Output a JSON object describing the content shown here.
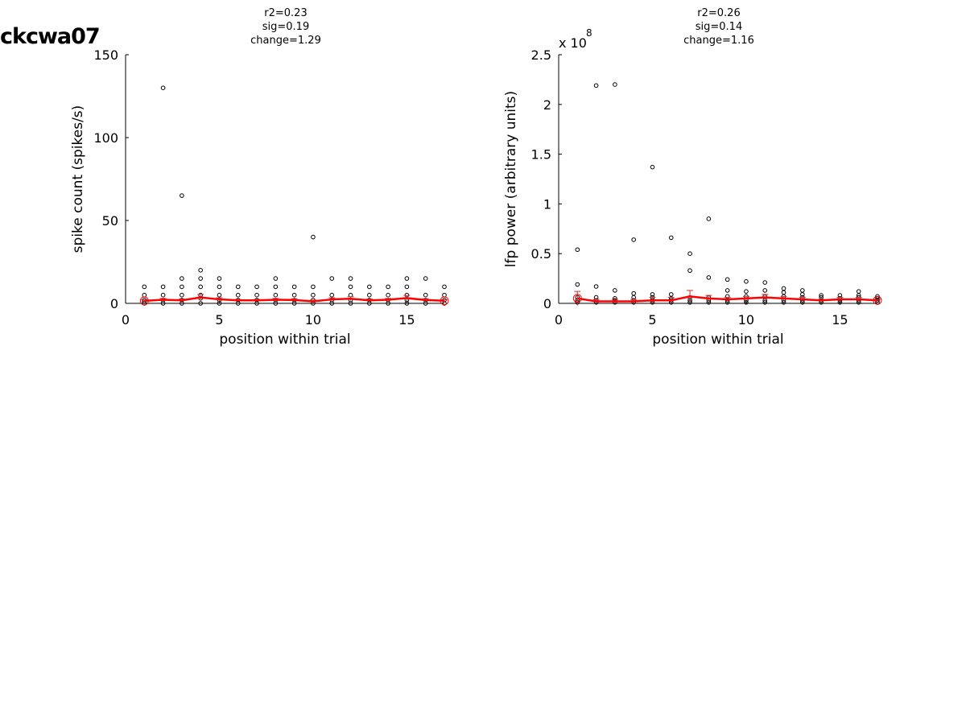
{
  "figure": {
    "title": "ckcwa07"
  },
  "chart_data": [
    {
      "type": "scatter",
      "stats": [
        "r2=0.23",
        "sig=0.19",
        "change=1.29"
      ],
      "xlabel": "position within trial",
      "ylabel": "spike count (spikes/s)",
      "xlim": [
        0,
        17
      ],
      "ylim": [
        0,
        150
      ],
      "xticks": [
        0,
        5,
        10,
        15
      ],
      "yticks": [
        0,
        50,
        100,
        150
      ],
      "ytick_labels": [
        "0",
        "50",
        "100",
        "150"
      ],
      "exponent_label": "",
      "grid": false,
      "points": [
        [
          1,
          0
        ],
        [
          1,
          1
        ],
        [
          1,
          2
        ],
        [
          1,
          5
        ],
        [
          1,
          10
        ],
        [
          2,
          0
        ],
        [
          2,
          2
        ],
        [
          2,
          5
        ],
        [
          2,
          10
        ],
        [
          2,
          130
        ],
        [
          3,
          0
        ],
        [
          3,
          2
        ],
        [
          3,
          5
        ],
        [
          3,
          10
        ],
        [
          3,
          15
        ],
        [
          3,
          65
        ],
        [
          4,
          0
        ],
        [
          4,
          3
        ],
        [
          4,
          5
        ],
        [
          4,
          10
        ],
        [
          4,
          15
        ],
        [
          4,
          20
        ],
        [
          5,
          0
        ],
        [
          5,
          2
        ],
        [
          5,
          5
        ],
        [
          5,
          10
        ],
        [
          5,
          15
        ],
        [
          6,
          0
        ],
        [
          6,
          2
        ],
        [
          6,
          5
        ],
        [
          6,
          10
        ],
        [
          7,
          0
        ],
        [
          7,
          2
        ],
        [
          7,
          5
        ],
        [
          7,
          10
        ],
        [
          8,
          0
        ],
        [
          8,
          2
        ],
        [
          8,
          5
        ],
        [
          8,
          10
        ],
        [
          8,
          15
        ],
        [
          9,
          0
        ],
        [
          9,
          2
        ],
        [
          9,
          5
        ],
        [
          9,
          10
        ],
        [
          10,
          0
        ],
        [
          10,
          2
        ],
        [
          10,
          5
        ],
        [
          10,
          10
        ],
        [
          10,
          40
        ],
        [
          11,
          0
        ],
        [
          11,
          2
        ],
        [
          11,
          5
        ],
        [
          11,
          15
        ],
        [
          12,
          0
        ],
        [
          12,
          2
        ],
        [
          12,
          5
        ],
        [
          12,
          10
        ],
        [
          12,
          15
        ],
        [
          13,
          0
        ],
        [
          13,
          2
        ],
        [
          13,
          5
        ],
        [
          13,
          10
        ],
        [
          14,
          0
        ],
        [
          14,
          2
        ],
        [
          14,
          5
        ],
        [
          14,
          10
        ],
        [
          15,
          0
        ],
        [
          15,
          2
        ],
        [
          15,
          5
        ],
        [
          15,
          10
        ],
        [
          15,
          15
        ],
        [
          16,
          0
        ],
        [
          16,
          2
        ],
        [
          16,
          5
        ],
        [
          16,
          15
        ],
        [
          17,
          0
        ],
        [
          17,
          2
        ],
        [
          17,
          5
        ],
        [
          17,
          10
        ]
      ],
      "means": [
        1.5,
        2.2,
        1.8,
        3.6,
        2.4,
        1.8,
        1.8,
        2.2,
        2.0,
        1.2,
        2.4,
        2.8,
        1.8,
        2.2,
        3.2,
        2.0,
        1.6
      ],
      "errors": [
        0.6,
        0.8,
        0.8,
        1.8,
        1.0,
        0.6,
        0.6,
        0.8,
        0.8,
        0.8,
        1.0,
        1.2,
        0.8,
        0.8,
        1.6,
        0.8,
        0.6
      ],
      "colors": {
        "points": "#000000",
        "mean_line": "#ff0000",
        "error_bars": "#cc3333"
      }
    },
    {
      "type": "scatter",
      "stats": [
        "r2=0.26",
        "sig=0.14",
        "change=1.16"
      ],
      "xlabel": "position within trial",
      "ylabel": "lfp power (arbitrary units)",
      "xlim": [
        0,
        17
      ],
      "ylim": [
        0,
        2.5
      ],
      "xticks": [
        0,
        5,
        10,
        15
      ],
      "yticks": [
        0,
        0.5,
        1,
        1.5,
        2,
        2.5
      ],
      "ytick_labels": [
        "0",
        "0.5",
        "1",
        "1.5",
        "2",
        "2.5"
      ],
      "exponent_label": "x 10",
      "exponent_power": "8",
      "grid": false,
      "points": [
        [
          1,
          0.01
        ],
        [
          1,
          0.03
        ],
        [
          1,
          0.06
        ],
        [
          1,
          0.19
        ],
        [
          1,
          0.54
        ],
        [
          2,
          0.01
        ],
        [
          2,
          0.03
        ],
        [
          2,
          0.06
        ],
        [
          2,
          0.17
        ],
        [
          2,
          2.19
        ],
        [
          3,
          0.01
        ],
        [
          3,
          0.03
        ],
        [
          3,
          0.05
        ],
        [
          3,
          0.13
        ],
        [
          3,
          2.2
        ],
        [
          4,
          0.01
        ],
        [
          4,
          0.03
        ],
        [
          4,
          0.06
        ],
        [
          4,
          0.1
        ],
        [
          4,
          0.64
        ],
        [
          5,
          0.01
        ],
        [
          5,
          0.03
        ],
        [
          5,
          0.06
        ],
        [
          5,
          0.09
        ],
        [
          5,
          1.37
        ],
        [
          6,
          0.01
        ],
        [
          6,
          0.03
        ],
        [
          6,
          0.05
        ],
        [
          6,
          0.09
        ],
        [
          6,
          0.66
        ],
        [
          7,
          0.01
        ],
        [
          7,
          0.03
        ],
        [
          7,
          0.06
        ],
        [
          7,
          0.33
        ],
        [
          7,
          0.5
        ],
        [
          8,
          0.01
        ],
        [
          8,
          0.03
        ],
        [
          8,
          0.06
        ],
        [
          8,
          0.26
        ],
        [
          8,
          0.85
        ],
        [
          9,
          0.01
        ],
        [
          9,
          0.03
        ],
        [
          9,
          0.07
        ],
        [
          9,
          0.13
        ],
        [
          9,
          0.24
        ],
        [
          10,
          0.01
        ],
        [
          10,
          0.03
        ],
        [
          10,
          0.07
        ],
        [
          10,
          0.12
        ],
        [
          10,
          0.22
        ],
        [
          11,
          0.01
        ],
        [
          11,
          0.03
        ],
        [
          11,
          0.07
        ],
        [
          11,
          0.13
        ],
        [
          11,
          0.21
        ],
        [
          12,
          0.01
        ],
        [
          12,
          0.03
        ],
        [
          12,
          0.07
        ],
        [
          12,
          0.11
        ],
        [
          12,
          0.15
        ],
        [
          13,
          0.01
        ],
        [
          13,
          0.03
        ],
        [
          13,
          0.06
        ],
        [
          13,
          0.09
        ],
        [
          13,
          0.13
        ],
        [
          14,
          0.01
        ],
        [
          14,
          0.03
        ],
        [
          14,
          0.06
        ],
        [
          14,
          0.08
        ],
        [
          15,
          0.01
        ],
        [
          15,
          0.03
        ],
        [
          15,
          0.05
        ],
        [
          15,
          0.08
        ],
        [
          16,
          0.01
        ],
        [
          16,
          0.03
        ],
        [
          16,
          0.06
        ],
        [
          16,
          0.08
        ],
        [
          16,
          0.12
        ],
        [
          17,
          0.01
        ],
        [
          17,
          0.03
        ],
        [
          17,
          0.05
        ],
        [
          17,
          0.07
        ]
      ],
      "means": [
        0.05,
        0.02,
        0.02,
        0.02,
        0.03,
        0.03,
        0.07,
        0.05,
        0.04,
        0.05,
        0.06,
        0.05,
        0.04,
        0.03,
        0.04,
        0.04,
        0.03
      ],
      "errors": [
        0.07,
        0.02,
        0.02,
        0.02,
        0.03,
        0.03,
        0.06,
        0.03,
        0.02,
        0.02,
        0.03,
        0.02,
        0.02,
        0.01,
        0.02,
        0.02,
        0.01
      ],
      "colors": {
        "points": "#000000",
        "mean_line": "#ff0000",
        "error_bars": "#cc3333"
      }
    }
  ]
}
